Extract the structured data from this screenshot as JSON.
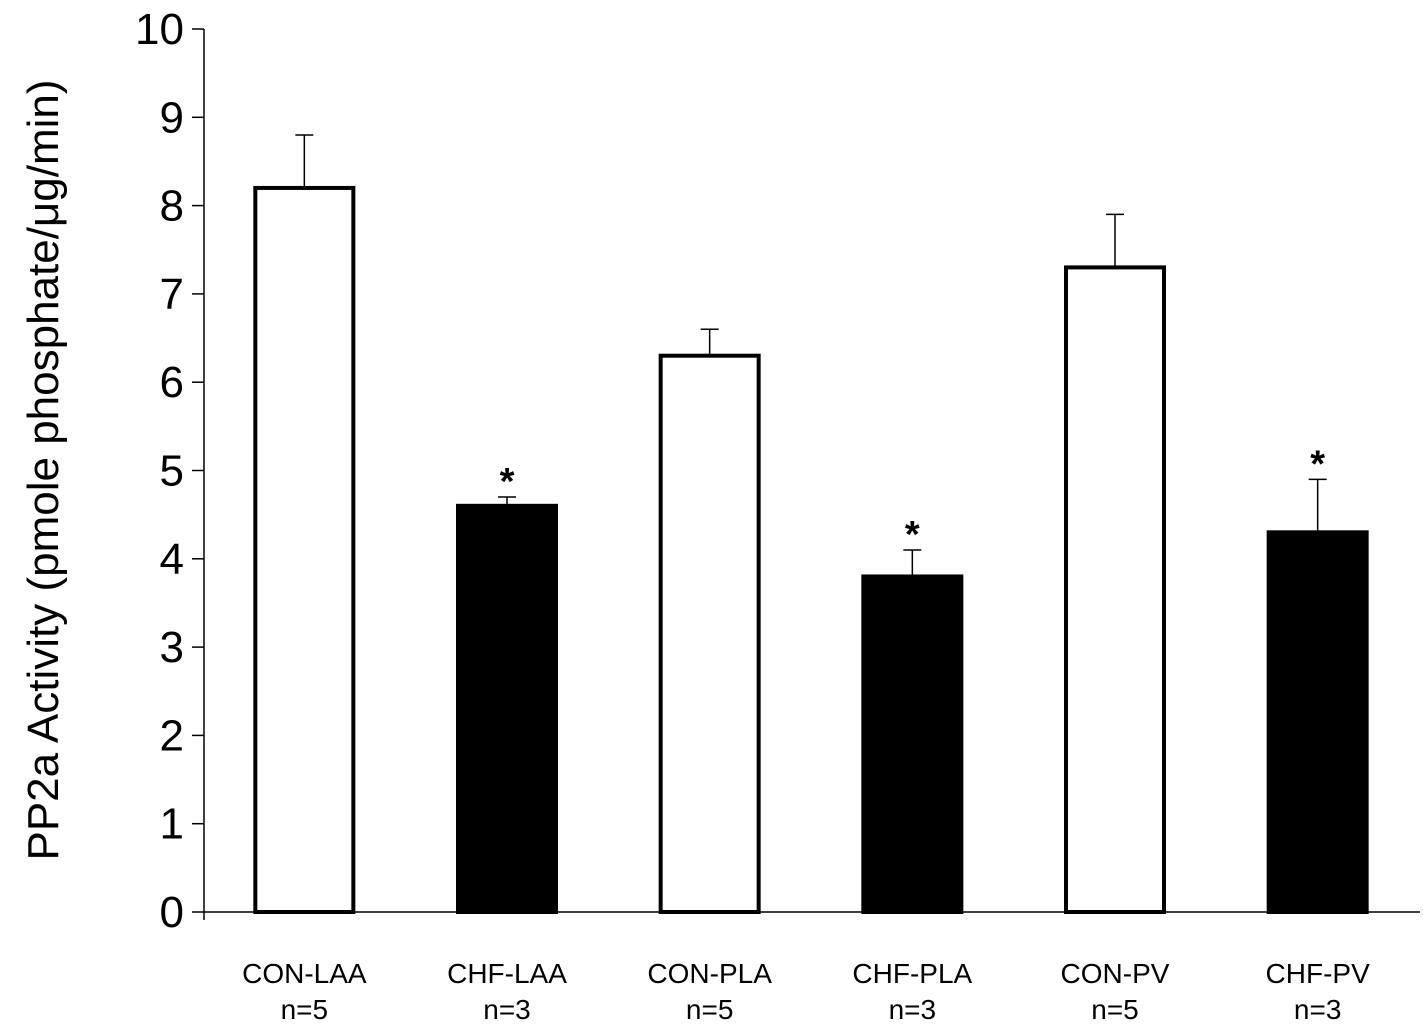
{
  "chart_data": {
    "type": "bar",
    "title": "",
    "ylabel": "PP2a Activity (pmole phosphate/μg/min)",
    "xlabel": "",
    "ylim": [
      0,
      10
    ],
    "yticks": [
      "0",
      "1",
      "2",
      "3",
      "4",
      "5",
      "6",
      "7",
      "8",
      "9",
      "10"
    ],
    "grid": false,
    "categories": [
      {
        "name": "CON-LAA",
        "n": "n=5"
      },
      {
        "name": "CHF-LAA",
        "n": "n=3"
      },
      {
        "name": "CON-PLA",
        "n": "n=5"
      },
      {
        "name": "CHF-PLA",
        "n": "n=3"
      },
      {
        "name": "CON-PV",
        "n": "n=5"
      },
      {
        "name": "CHF-PV",
        "n": "n=3"
      }
    ],
    "values": [
      8.2,
      4.6,
      6.3,
      3.8,
      7.3,
      4.3
    ],
    "errors": [
      0.6,
      0.1,
      0.3,
      0.3,
      0.6,
      0.6
    ],
    "significance": [
      "",
      "*",
      "",
      "*",
      "",
      "*"
    ],
    "bar_fill": [
      "#ffffff",
      "#000000",
      "#ffffff",
      "#000000",
      "#ffffff",
      "#000000"
    ]
  }
}
